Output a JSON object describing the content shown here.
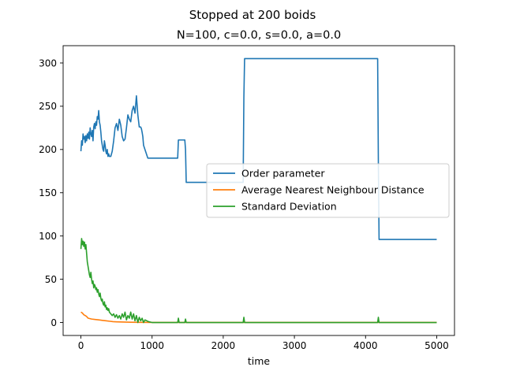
{
  "figure": {
    "suptitle": "Stopped at 200 boids",
    "title": "N=100, c=0.0, s=0.0, a=0.0"
  },
  "chart_data": {
    "type": "line",
    "title": "N=100, c=0.0, s=0.0, a=0.0",
    "xlabel": "time",
    "ylabel": "",
    "xlim": [
      -250,
      5250
    ],
    "ylim": [
      -15,
      320
    ],
    "xticks": [
      0,
      1000,
      2000,
      3000,
      4000,
      5000
    ],
    "yticks": [
      0,
      50,
      100,
      150,
      200,
      250,
      300
    ],
    "grid": false,
    "legend_position": "center-right",
    "series": [
      {
        "name": "Order parameter",
        "color": "#1f77b4",
        "x": [
          0,
          10,
          20,
          30,
          40,
          50,
          60,
          70,
          80,
          90,
          100,
          110,
          120,
          130,
          140,
          150,
          160,
          170,
          180,
          190,
          200,
          210,
          220,
          230,
          240,
          250,
          260,
          270,
          280,
          290,
          300,
          310,
          320,
          330,
          340,
          350,
          360,
          370,
          380,
          390,
          400,
          420,
          440,
          460,
          480,
          500,
          520,
          540,
          560,
          580,
          600,
          620,
          640,
          660,
          680,
          700,
          720,
          740,
          760,
          780,
          800,
          820,
          830,
          840,
          850,
          860,
          870,
          880,
          900,
          940,
          1000,
          1100,
          1200,
          1300,
          1360,
          1370,
          1380,
          1400,
          1460,
          1470,
          1480,
          1490,
          1500,
          1600,
          1700,
          1800,
          1900,
          2000,
          2100,
          2200,
          2280,
          2290,
          2300,
          2310,
          2400,
          2600,
          2800,
          3000,
          3200,
          3400,
          3600,
          3800,
          4000,
          4170,
          4180,
          4190,
          4200,
          4400,
          4600,
          4800,
          5000
        ],
        "y": [
          198,
          210,
          205,
          218,
          212,
          215,
          208,
          216,
          210,
          218,
          213,
          220,
          212,
          225,
          218,
          215,
          222,
          210,
          226,
          230,
          224,
          232,
          228,
          238,
          235,
          245,
          232,
          228,
          220,
          210,
          205,
          200,
          198,
          210,
          205,
          198,
          195,
          200,
          192,
          195,
          192,
          192,
          198,
          210,
          225,
          230,
          222,
          235,
          228,
          215,
          210,
          212,
          225,
          240,
          235,
          232,
          245,
          250,
          242,
          262,
          240,
          226,
          226,
          226,
          224,
          220,
          215,
          205,
          200,
          190,
          190,
          190,
          190,
          190,
          190,
          211,
          211,
          211,
          211,
          200,
          162,
          162,
          162,
          162,
          162,
          162,
          162,
          162,
          162,
          162,
          162,
          260,
          305,
          305,
          305,
          305,
          305,
          305,
          305,
          305,
          305,
          305,
          305,
          305,
          185,
          96,
          96,
          96,
          96,
          96,
          96
        ]
      },
      {
        "name": "Average Nearest Neighbour Distance",
        "color": "#ff7f0e",
        "x": [
          0,
          20,
          40,
          60,
          80,
          100,
          150,
          200,
          250,
          300,
          350,
          400,
          450,
          500,
          600,
          700,
          800,
          1000,
          2000,
          3000,
          4000,
          5000
        ],
        "y": [
          12,
          11,
          9,
          8,
          7,
          5,
          4,
          3.5,
          3,
          2.5,
          2,
          1.5,
          1,
          0.8,
          0.5,
          0.3,
          0.2,
          0.1,
          0.1,
          0.1,
          0.1,
          0.1
        ]
      },
      {
        "name": "Standard Deviation",
        "color": "#2ca02c",
        "x": [
          0,
          10,
          20,
          30,
          40,
          50,
          60,
          70,
          80,
          90,
          100,
          110,
          120,
          130,
          140,
          150,
          160,
          170,
          180,
          190,
          200,
          210,
          220,
          230,
          240,
          250,
          260,
          270,
          280,
          290,
          300,
          310,
          320,
          330,
          340,
          350,
          360,
          370,
          380,
          390,
          400,
          420,
          440,
          460,
          480,
          500,
          520,
          540,
          560,
          580,
          600,
          620,
          640,
          660,
          680,
          700,
          720,
          740,
          760,
          780,
          800,
          820,
          840,
          860,
          880,
          900,
          950,
          1000,
          1100,
          1200,
          1300,
          1360,
          1370,
          1380,
          1400,
          1460,
          1470,
          1480,
          1500,
          2000,
          2280,
          2290,
          2300,
          2310,
          3000,
          4000,
          4170,
          4180,
          4190,
          4200,
          5000
        ],
        "y": [
          85,
          97,
          90,
          94,
          88,
          93,
          85,
          90,
          80,
          70,
          65,
          60,
          55,
          52,
          58,
          50,
          45,
          48,
          40,
          44,
          42,
          38,
          40,
          35,
          38,
          33,
          30,
          34,
          28,
          25,
          27,
          22,
          20,
          24,
          18,
          20,
          15,
          17,
          14,
          16,
          12,
          10,
          8,
          10,
          6,
          9,
          5,
          8,
          4,
          10,
          6,
          12,
          3,
          8,
          5,
          12,
          4,
          10,
          2,
          8,
          0,
          6,
          2,
          5,
          0,
          3,
          1,
          0,
          0,
          0,
          0,
          0,
          5,
          0,
          0,
          0,
          4,
          0,
          0,
          0,
          0,
          6,
          0,
          0,
          0,
          0,
          0,
          6,
          0,
          0,
          0
        ]
      }
    ]
  }
}
